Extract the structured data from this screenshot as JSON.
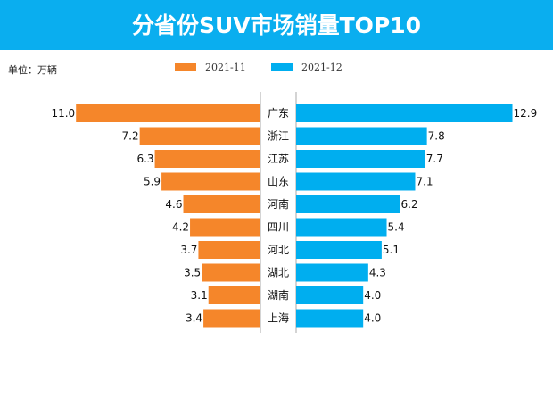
{
  "header": {
    "title": "分省份SUV市场销量TOP10"
  },
  "chart_data": {
    "type": "bar",
    "orientation": "horizontal-butterfly",
    "unit_label": "单位：万辆",
    "categories": [
      "广东",
      "浙江",
      "江苏",
      "山东",
      "河南",
      "四川",
      "河北",
      "湖北",
      "湖南",
      "上海"
    ],
    "series": [
      {
        "name": "2021-11",
        "color": "#f5862a",
        "side": "left",
        "values": [
          11.0,
          7.2,
          6.3,
          5.9,
          4.6,
          4.2,
          3.7,
          3.5,
          3.1,
          3.4
        ]
      },
      {
        "name": "2021-12",
        "color": "#00aeef",
        "side": "right",
        "values": [
          12.9,
          7.8,
          7.7,
          7.1,
          6.2,
          5.4,
          5.1,
          4.3,
          4.0,
          4.0
        ]
      }
    ],
    "legend_position": "top",
    "grid": false
  }
}
